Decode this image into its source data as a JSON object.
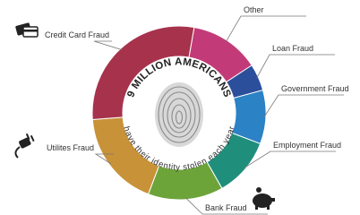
{
  "chart_data": {
    "type": "donut",
    "title": "9 MILLION AMERICANS",
    "subtitle": "have their identity stolen each year",
    "categories": [
      "Other",
      "Loan Fraud",
      "Government Fraud",
      "Employment Fraud",
      "Bank Fraud",
      "Utilites Fraud",
      "Credit Card Fraud"
    ],
    "values": [
      13,
      5,
      10,
      11,
      14,
      18,
      29
    ],
    "colors": [
      "#c23b78",
      "#2c4f9c",
      "#2b82c4",
      "#1f8f7c",
      "#6da43a",
      "#c89238",
      "#a7324c"
    ]
  }
}
